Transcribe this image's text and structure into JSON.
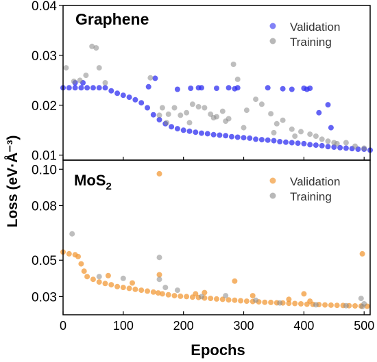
{
  "figure": {
    "shared_ylabel": "Loss (eV·Å⁻³)",
    "shared_xlabel": "Epochs"
  },
  "chart_data": [
    {
      "type": "scatter",
      "panel_label": "Graphene",
      "xlabel": "Epochs",
      "ylabel": "Loss (eV·Å⁻³)",
      "xlim": [
        0,
        510
      ],
      "ylim": [
        0.009,
        0.04
      ],
      "x_ticks": [
        0,
        100,
        200,
        300,
        400,
        500
      ],
      "y_ticks": [
        0.01,
        0.02,
        0.03,
        0.04
      ],
      "y_tick_labels": [
        "0.01",
        "0.02",
        "0.03",
        "0.04"
      ],
      "legend": {
        "position": "top-right"
      },
      "grid": false,
      "series": [
        {
          "name": "Validation",
          "color": "#2f2ff0",
          "x": [
            0,
            10,
            20,
            30,
            40,
            50,
            60,
            70,
            80,
            90,
            100,
            110,
            120,
            130,
            140,
            150,
            160,
            170,
            180,
            190,
            200,
            210,
            220,
            230,
            240,
            250,
            260,
            270,
            280,
            290,
            300,
            310,
            320,
            330,
            340,
            350,
            360,
            370,
            380,
            390,
            400,
            410,
            420,
            430,
            440,
            450,
            460,
            470,
            480,
            490,
            500,
            510,
            142,
            153,
            190,
            212,
            225,
            230,
            255,
            275,
            285,
            290,
            340,
            365,
            380,
            400,
            405,
            410,
            425,
            440,
            445,
            20,
            33
          ],
          "y": [
            0.0235,
            0.0235,
            0.0235,
            0.0235,
            0.0235,
            0.0235,
            0.0235,
            0.0235,
            0.0229,
            0.0224,
            0.022,
            0.0216,
            0.0211,
            0.0205,
            0.0195,
            0.0181,
            0.0171,
            0.0163,
            0.0157,
            0.0153,
            0.015,
            0.0148,
            0.0146,
            0.0144,
            0.0143,
            0.0141,
            0.014,
            0.0139,
            0.0137,
            0.0136,
            0.0135,
            0.0134,
            0.0132,
            0.0131,
            0.013,
            0.0129,
            0.0127,
            0.0126,
            0.0125,
            0.0124,
            0.0123,
            0.0121,
            0.012,
            0.0119,
            0.0117,
            0.0116,
            0.0115,
            0.0114,
            0.0113,
            0.0112,
            0.0112,
            0.011,
            0.0237,
            0.0254,
            0.0232,
            0.0234,
            0.0235,
            0.0235,
            0.0234,
            0.0235,
            0.0233,
            0.0235,
            0.0235,
            0.0233,
            0.0232,
            0.0234,
            0.0232,
            0.0234,
            0.0185,
            0.0201,
            0.0155,
            0.0245,
            0.0245
          ]
        },
        {
          "name": "Training",
          "color": "#888888",
          "x": [
            5,
            18,
            28,
            38,
            48,
            55,
            60,
            70,
            145,
            160,
            175,
            185,
            195,
            205,
            215,
            225,
            235,
            245,
            255,
            265,
            275,
            283,
            290,
            305,
            320,
            330,
            345,
            355,
            365,
            380,
            395,
            410,
            420,
            430,
            440,
            455,
            470,
            485,
            500,
            165,
            172,
            210,
            250,
            270,
            300,
            350,
            385,
            450
          ],
          "y": [
            0.0275,
            0.0248,
            0.025,
            0.026,
            0.0318,
            0.0315,
            0.0275,
            0.0245,
            0.0255,
            0.018,
            0.0182,
            0.0195,
            0.018,
            0.0185,
            0.0202,
            0.0197,
            0.0195,
            0.0182,
            0.0177,
            0.0188,
            0.0173,
            0.0282,
            0.0252,
            0.019,
            0.0212,
            0.0202,
            0.0183,
            0.0163,
            0.017,
            0.0152,
            0.0147,
            0.0142,
            0.0138,
            0.0132,
            0.0128,
            0.0123,
            0.0125,
            0.0118,
            0.0114,
            0.0195,
            0.0165,
            0.0165,
            0.0175,
            0.0168,
            0.0155,
            0.0145,
            0.0138,
            0.0125
          ]
        }
      ]
    },
    {
      "type": "scatter",
      "panel_label": "MoS2",
      "xlabel": "Epochs",
      "ylabel": "Loss (eV·Å⁻³)",
      "xlim": [
        0,
        510
      ],
      "ylim": [
        0.02,
        0.105
      ],
      "x_ticks": [
        0,
        100,
        200,
        300,
        400,
        500
      ],
      "x_tick_labels": [
        "0",
        "100",
        "200",
        "300",
        "400",
        "500"
      ],
      "y_ticks": [
        0.03,
        0.05,
        0.08,
        0.1
      ],
      "y_tick_labels": [
        "0.03",
        "0.05",
        "0.08",
        "0.10"
      ],
      "legend": {
        "position": "top-right"
      },
      "grid": false,
      "series": [
        {
          "name": "Validation",
          "color": "#f29a38",
          "x": [
            0,
            10,
            20,
            25,
            30,
            35,
            40,
            50,
            60,
            70,
            80,
            90,
            100,
            110,
            120,
            130,
            140,
            150,
            158,
            165,
            175,
            185,
            195,
            205,
            215,
            225,
            235,
            245,
            255,
            265,
            275,
            285,
            295,
            305,
            315,
            325,
            335,
            345,
            355,
            365,
            375,
            385,
            395,
            405,
            415,
            425,
            435,
            445,
            455,
            465,
            475,
            485,
            495,
            505,
            160,
            160,
            285,
            400,
            497,
            75,
            115,
            220,
            235,
            315,
            375,
            410
          ],
          "y": [
            0.0545,
            0.0535,
            0.053,
            0.052,
            0.048,
            0.044,
            0.041,
            0.0395,
            0.038,
            0.0372,
            0.0365,
            0.0355,
            0.035,
            0.0345,
            0.034,
            0.0335,
            0.033,
            0.0325,
            0.032,
            0.0315,
            0.031,
            0.0305,
            0.0302,
            0.03,
            0.0297,
            0.0295,
            0.0292,
            0.029,
            0.0287,
            0.0285,
            0.0282,
            0.028,
            0.0277,
            0.0275,
            0.0273,
            0.0271,
            0.0269,
            0.0268,
            0.0266,
            0.0265,
            0.0263,
            0.0262,
            0.026,
            0.0258,
            0.0257,
            0.0256,
            0.0254,
            0.0253,
            0.0252,
            0.0251,
            0.025,
            0.0249,
            0.0248,
            0.0247,
            0.0975,
            0.042,
            0.0385,
            0.0315,
            0.0535,
            0.0415,
            0.0375,
            0.0315,
            0.0322,
            0.0305,
            0.0285,
            0.0275
          ]
        },
        {
          "name": "Training",
          "color": "#888888",
          "x": [
            15,
            60,
            100,
            160,
            160,
            170,
            190,
            230,
            270,
            320,
            360,
            420,
            470,
            495,
            497,
            500
          ],
          "y": [
            0.0645,
            0.041,
            0.04,
            0.0515,
            0.0395,
            0.035,
            0.0335,
            0.03,
            0.0305,
            0.028,
            0.0265,
            0.0255,
            0.025,
            0.029,
            0.0245,
            0.026
          ]
        }
      ]
    }
  ]
}
